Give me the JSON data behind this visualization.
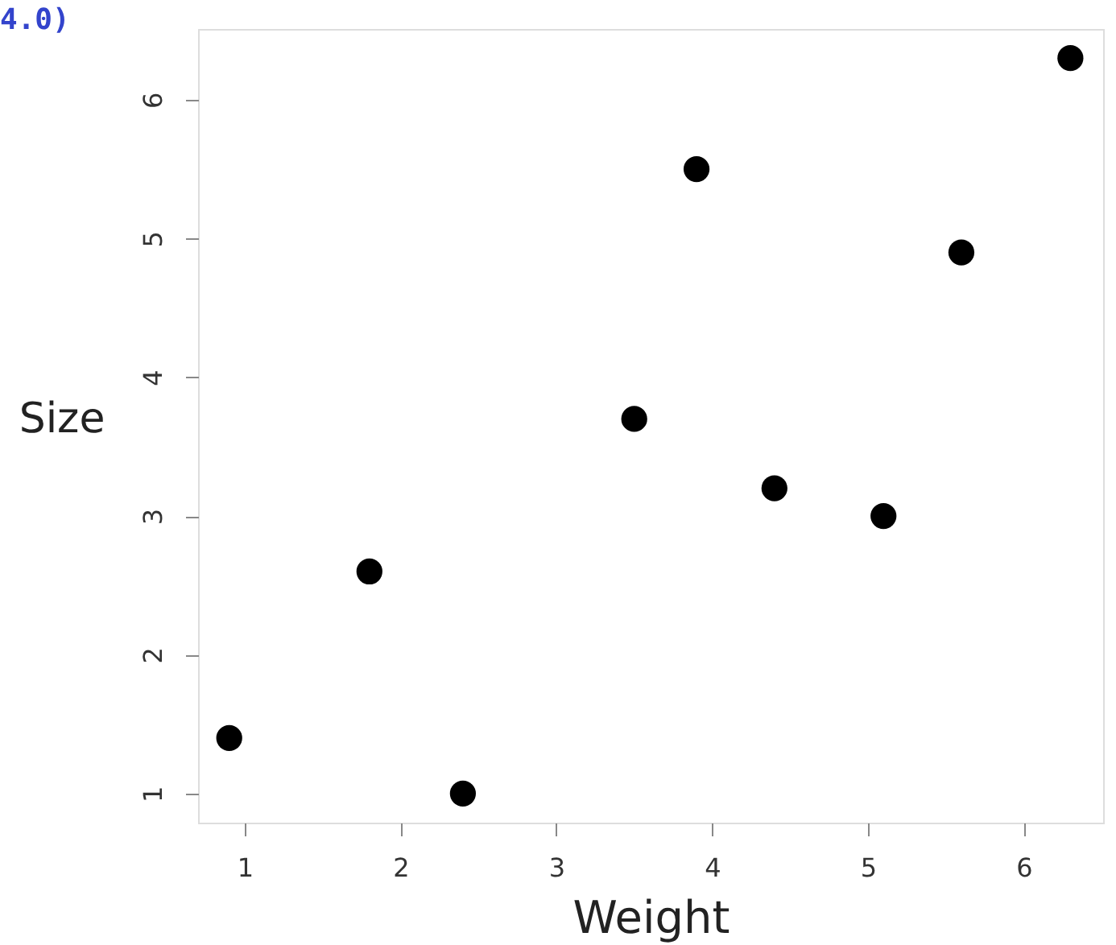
{
  "chart_data": {
    "type": "scatter",
    "xlabel": "Weight",
    "ylabel": "Size",
    "x": [
      0.9,
      1.8,
      2.4,
      3.5,
      3.9,
      4.4,
      5.1,
      5.6,
      6.3
    ],
    "values": [
      1.4,
      2.6,
      1.0,
      3.7,
      5.5,
      3.2,
      3.0,
      4.9,
      6.3
    ],
    "color": "#000000",
    "marker": "circle",
    "xlim": [
      0.7,
      6.51
    ],
    "ylim": [
      0.79,
      6.51
    ],
    "xticks": [
      1,
      2,
      3,
      4,
      5,
      6
    ],
    "yticks": [
      1,
      2,
      3,
      4,
      5,
      6
    ],
    "grid": false,
    "annotations": [
      "4.0)"
    ]
  }
}
